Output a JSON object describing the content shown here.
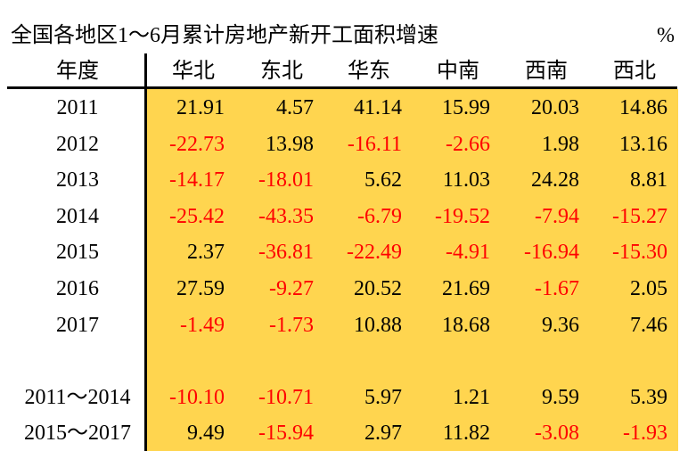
{
  "title": "全国各地区1～6月累计房地产新开工面积增速",
  "unit": "%",
  "table": {
    "header": [
      "年度",
      "华北",
      "东北",
      "华东",
      "中南",
      "西南",
      "西北"
    ],
    "rows": [
      [
        "2011",
        "21.91",
        "4.57",
        "41.14",
        "15.99",
        "20.03",
        "14.86"
      ],
      [
        "2012",
        "-22.73",
        "13.98",
        "-16.11",
        "-2.66",
        "1.98",
        "13.16"
      ],
      [
        "2013",
        "-14.17",
        "-18.01",
        "5.62",
        "11.03",
        "24.28",
        "8.81"
      ],
      [
        "2014",
        "-25.42",
        "-43.35",
        "-6.79",
        "-19.52",
        "-7.94",
        "-15.27"
      ],
      [
        "2015",
        "2.37",
        "-36.81",
        "-22.49",
        "-4.91",
        "-16.94",
        "-15.30"
      ],
      [
        "2016",
        "27.59",
        "-9.27",
        "20.52",
        "21.69",
        "-1.67",
        "2.05"
      ],
      [
        "2017",
        "-1.49",
        "-1.73",
        "10.88",
        "18.68",
        "9.36",
        "7.46"
      ],
      [
        "2011～2014",
        "-10.10",
        "-10.71",
        "5.97",
        "1.21",
        "9.59",
        "5.39"
      ],
      [
        "2015～2017",
        "9.49",
        "-15.94",
        "2.97",
        "11.82",
        "-3.08",
        "-1.93"
      ]
    ]
  }
}
